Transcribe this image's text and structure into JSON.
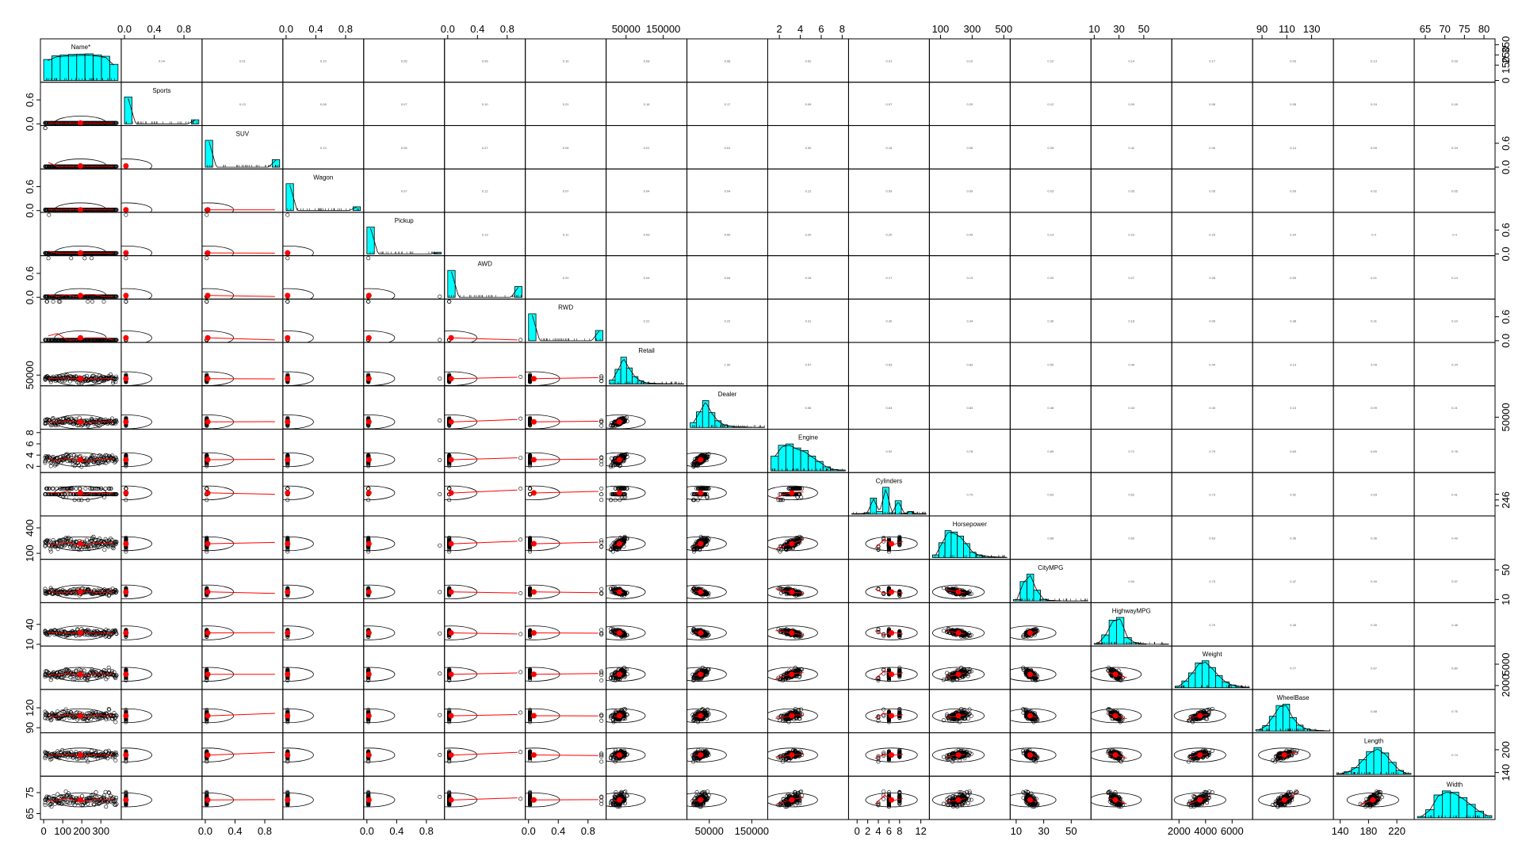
{
  "chart_data": {
    "type": "scatter-matrix",
    "title": "",
    "variables": [
      "Name*",
      "Sports",
      "SUV",
      "Wagon",
      "Pickup",
      "AWD",
      "RWD",
      "Retail",
      "Dealer",
      "Engine",
      "Cylinders",
      "Horsepower",
      "CityMPG",
      "HighwayMPG",
      "Weight",
      "WheelBase",
      "Length",
      "Width"
    ],
    "ranges": [
      [
        0,
        390
      ],
      [
        0,
        1
      ],
      [
        0,
        1
      ],
      [
        0,
        1
      ],
      [
        0,
        1
      ],
      [
        0,
        1
      ],
      [
        0,
        1
      ],
      [
        5000,
        205000
      ],
      [
        5000,
        180000
      ],
      [
        1.2,
        8.3
      ],
      [
        -1,
        13
      ],
      [
        50,
        520
      ],
      [
        8,
        62
      ],
      [
        10,
        70
      ],
      [
        1700,
        7300
      ],
      [
        85,
        145
      ],
      [
        135,
        240
      ],
      [
        63,
        82
      ]
    ],
    "ticks": {
      "top": [
        null,
        [
          {
            "v": 0.0,
            "l": "0.0"
          },
          {
            "v": 0.4,
            "l": "0.4"
          },
          {
            "v": 0.8,
            "l": "0.8"
          }
        ],
        null,
        [
          {
            "v": 0.0,
            "l": "0.0"
          },
          {
            "v": 0.4,
            "l": "0.4"
          },
          {
            "v": 0.8,
            "l": "0.8"
          }
        ],
        null,
        [
          {
            "v": 0.0,
            "l": "0.0"
          },
          {
            "v": 0.4,
            "l": "0.4"
          },
          {
            "v": 0.8,
            "l": "0.8"
          }
        ],
        null,
        [
          {
            "v": 50000,
            "l": "50000"
          },
          {
            "v": 150000,
            "l": "150000"
          }
        ],
        null,
        [
          {
            "v": 2,
            "l": "2"
          },
          {
            "v": 4,
            "l": "4"
          },
          {
            "v": 6,
            "l": "6"
          },
          {
            "v": 8,
            "l": "8"
          }
        ],
        null,
        [
          {
            "v": 100,
            "l": "100"
          },
          {
            "v": 300,
            "l": "300"
          },
          {
            "v": 500,
            "l": "500"
          }
        ],
        null,
        [
          {
            "v": 10,
            "l": "10"
          },
          {
            "v": 30,
            "l": "30"
          },
          {
            "v": 50,
            "l": "50"
          }
        ],
        null,
        [
          {
            "v": 90,
            "l": "90"
          },
          {
            "v": 110,
            "l": "110"
          },
          {
            "v": 130,
            "l": "130"
          }
        ],
        null,
        [
          {
            "v": 65,
            "l": "65"
          },
          {
            "v": 70,
            "l": "70"
          },
          {
            "v": 75,
            "l": "75"
          },
          {
            "v": 80,
            "l": "80"
          }
        ]
      ],
      "bottom": [
        [
          {
            "v": 0,
            "l": "0"
          },
          {
            "v": 100,
            "l": "100"
          },
          {
            "v": 200,
            "l": "200"
          },
          {
            "v": 300,
            "l": "300"
          }
        ],
        null,
        [
          {
            "v": 0.0,
            "l": "0.0"
          },
          {
            "v": 0.4,
            "l": "0.4"
          },
          {
            "v": 0.8,
            "l": "0.8"
          }
        ],
        null,
        [
          {
            "v": 0.0,
            "l": "0.0"
          },
          {
            "v": 0.4,
            "l": "0.4"
          },
          {
            "v": 0.8,
            "l": "0.8"
          }
        ],
        null,
        [
          {
            "v": 0.0,
            "l": "0.0"
          },
          {
            "v": 0.4,
            "l": "0.4"
          },
          {
            "v": 0.8,
            "l": "0.8"
          }
        ],
        null,
        [
          {
            "v": 50000,
            "l": "50000"
          },
          {
            "v": 150000,
            "l": "150000"
          }
        ],
        null,
        [
          {
            "v": 0,
            "l": "0"
          },
          {
            "v": 2,
            "l": "2"
          },
          {
            "v": 4,
            "l": "4"
          },
          {
            "v": 6,
            "l": "6"
          },
          {
            "v": 8,
            "l": "8"
          },
          {
            "v": 12,
            "l": "12"
          }
        ],
        null,
        [
          {
            "v": 10,
            "l": "10"
          },
          {
            "v": 30,
            "l": "30"
          },
          {
            "v": 50,
            "l": "50"
          }
        ],
        null,
        [
          {
            "v": 2000,
            "l": "2000"
          },
          {
            "v": 4000,
            "l": "4000"
          },
          {
            "v": 6000,
            "l": "6000"
          }
        ],
        null,
        [
          {
            "v": 140,
            "l": "140"
          },
          {
            "v": 180,
            "l": "180"
          },
          {
            "v": 220,
            "l": "220"
          }
        ],
        null
      ],
      "left": [
        null,
        [
          {
            "v": 0.0,
            "l": "0.0"
          },
          {
            "v": 0.6,
            "l": "0.6"
          }
        ],
        null,
        [
          {
            "v": 0.0,
            "l": "0.0"
          },
          {
            "v": 0.6,
            "l": "0.6"
          }
        ],
        null,
        [
          {
            "v": 0.0,
            "l": "0.0"
          },
          {
            "v": 0.6,
            "l": "0.6"
          }
        ],
        null,
        [
          {
            "v": 50000,
            "l": "50000"
          }
        ],
        null,
        [
          {
            "v": 2,
            "l": "2"
          },
          {
            "v": 4,
            "l": "4"
          },
          {
            "v": 6,
            "l": "6"
          },
          {
            "v": 8,
            "l": "8"
          }
        ],
        null,
        [
          {
            "v": 100,
            "l": "100"
          },
          {
            "v": 400,
            "l": "400"
          }
        ],
        null,
        [
          {
            "v": 10,
            "l": "10"
          },
          {
            "v": 40,
            "l": "40"
          }
        ],
        null,
        [
          {
            "v": 90,
            "l": "90"
          },
          {
            "v": 120,
            "l": "120"
          }
        ],
        null,
        [
          {
            "v": 65,
            "l": "65"
          },
          {
            "v": 75,
            "l": "75"
          }
        ]
      ],
      "right": [
        [
          {
            "v": 0,
            "l": "0"
          },
          {
            "v": 150,
            "l": "150"
          },
          {
            "v": 250,
            "l": "250"
          },
          {
            "v": 350,
            "l": "350"
          }
        ],
        null,
        [
          {
            "v": 0.0,
            "l": "0.0"
          },
          {
            "v": 0.6,
            "l": "0.6"
          }
        ],
        null,
        [
          {
            "v": 0.0,
            "l": "0.0"
          },
          {
            "v": 0.6,
            "l": "0.6"
          }
        ],
        null,
        [
          {
            "v": 0.0,
            "l": "0.0"
          },
          {
            "v": 0.6,
            "l": "0.6"
          }
        ],
        null,
        [
          {
            "v": 50000,
            "l": "50000"
          }
        ],
        null,
        [
          {
            "v": 2,
            "l": "2"
          },
          {
            "v": 4,
            "l": "4"
          },
          {
            "v": 6,
            "l": "6"
          }
        ],
        null,
        [
          {
            "v": 10,
            "l": "10"
          },
          {
            "v": 50,
            "l": "50"
          }
        ],
        null,
        [
          {
            "v": 2000,
            "l": "2000"
          },
          {
            "v": 5000,
            "l": "5000"
          }
        ],
        null,
        [
          {
            "v": 140,
            "l": "140"
          },
          {
            "v": 200,
            "l": "200"
          }
        ],
        null
      ]
    },
    "correlations": [
      [
        null,
        "0.04",
        "0.01",
        "0.10",
        "0.05",
        "0.06",
        "0.10",
        "0.08",
        "0.08",
        "0.02",
        "0.01",
        "0.10",
        "0.10",
        "0.14",
        "0.17",
        "0.03",
        "0.13",
        "0.03"
      ],
      [
        null,
        null,
        "0.13",
        "0.08",
        "0.07",
        "0.10",
        "0.21",
        "0.16",
        "0.17",
        "0.09",
        "0.07",
        "0.20",
        "0.12",
        "0.09",
        "0.06",
        "0.28",
        "0.24",
        "0.18"
      ],
      [
        null,
        null,
        null,
        "0.13",
        "0.05",
        "0.27",
        "0.04",
        "0.01",
        "0.01",
        "0.30",
        "0.16",
        "0.06",
        "0.28",
        "0.42",
        "0.40",
        "0.14",
        "0.09",
        "0.24"
      ],
      [
        null,
        null,
        null,
        null,
        "0.07",
        "0.12",
        "0.07",
        "0.04",
        "0.04",
        "0.12",
        "0.09",
        "0.09",
        "0.03",
        "0.05",
        "0.05",
        "0.09",
        "0.02",
        "0.05"
      ],
      [
        null,
        null,
        null,
        null,
        null,
        "0.19",
        "0.11",
        "0.09",
        "0.09",
        "0.20",
        "0.20",
        "0.09",
        "0.14",
        "0.23",
        "0.29",
        "0.24",
        "0.4",
        "0.4"
      ],
      [
        null,
        null,
        null,
        null,
        null,
        null,
        "0.20",
        "0.04",
        "0.04",
        "0.16",
        "0.17",
        "0.13",
        "0.20",
        "0.27",
        "0.26",
        "0.09",
        "0.01",
        "0.14"
      ],
      [
        null,
        null,
        null,
        null,
        null,
        null,
        null,
        "0.22",
        "0.22",
        "0.31",
        "0.30",
        "0.34",
        "0.30",
        "0.18",
        "0.09",
        "0.38",
        "0.31",
        "0.10"
      ],
      [
        null,
        null,
        null,
        null,
        null,
        null,
        null,
        null,
        "1.00",
        "0.57",
        "0.63",
        "0.83",
        "0.50",
        "0.46",
        "0.44",
        "0.13",
        "0.09",
        "0.24"
      ],
      [
        null,
        null,
        null,
        null,
        null,
        null,
        null,
        null,
        null,
        "0.56",
        "0.63",
        "0.83",
        "0.48",
        "0.43",
        "0.43",
        "0.13",
        "0.09",
        "0.21"
      ],
      [
        null,
        null,
        null,
        null,
        null,
        null,
        null,
        null,
        null,
        null,
        "0.92",
        "0.78",
        "0.69",
        "0.71",
        "0.79",
        "0.63",
        "0.69",
        "0.78"
      ],
      [
        null,
        null,
        null,
        null,
        null,
        null,
        null,
        null,
        null,
        null,
        null,
        "0.79",
        "0.63",
        "0.62",
        "0.73",
        "0.52",
        "0.63",
        "0.41"
      ],
      [
        null,
        null,
        null,
        null,
        null,
        null,
        null,
        null,
        null,
        null,
        null,
        null,
        "0.68",
        "0.63",
        "0.63",
        "0.36",
        "0.36",
        "0.49"
      ],
      [
        null,
        null,
        null,
        null,
        null,
        null,
        null,
        null,
        null,
        null,
        null,
        null,
        null,
        "0.94",
        "0.73",
        "0.47",
        "0.40",
        "0.57"
      ],
      [
        null,
        null,
        null,
        null,
        null,
        null,
        null,
        null,
        null,
        null,
        null,
        null,
        null,
        null,
        "0.79",
        "0.45",
        "0.30",
        "0.48"
      ],
      [
        null,
        null,
        null,
        null,
        null,
        null,
        null,
        null,
        null,
        null,
        null,
        null,
        null,
        null,
        null,
        "0.77",
        "0.67",
        "0.80"
      ],
      [
        null,
        null,
        null,
        null,
        null,
        null,
        null,
        null,
        null,
        null,
        null,
        null,
        null,
        null,
        null,
        null,
        "0.88",
        "0.75"
      ],
      [
        null,
        null,
        null,
        null,
        null,
        null,
        null,
        null,
        null,
        null,
        null,
        null,
        null,
        null,
        null,
        null,
        null,
        "0.74"
      ],
      [
        null,
        null,
        null,
        null,
        null,
        null,
        null,
        null,
        null,
        null,
        null,
        null,
        null,
        null,
        null,
        null,
        null,
        null
      ]
    ],
    "histograms": [
      [
        0.78,
        0.92,
        0.95,
        0.97,
        0.98,
        0.99,
        0.95,
        0.9,
        0.6
      ],
      [
        1.0,
        0,
        0,
        0,
        0,
        0,
        0,
        0,
        0,
        0.15
      ],
      [
        1.0,
        0,
        0,
        0,
        0,
        0,
        0,
        0,
        0,
        0.28
      ],
      [
        1.0,
        0,
        0,
        0,
        0,
        0,
        0,
        0,
        0,
        0.14
      ],
      [
        1.0,
        0,
        0,
        0,
        0,
        0,
        0,
        0,
        0,
        0.05
      ],
      [
        1.0,
        0,
        0,
        0,
        0,
        0,
        0,
        0,
        0,
        0.4
      ],
      [
        1.0,
        0,
        0,
        0,
        0,
        0,
        0,
        0,
        0,
        0.38
      ],
      [
        0.15,
        0.55,
        1.0,
        0.6,
        0.28,
        0.12,
        0.05,
        0.03,
        0.02,
        0.01,
        0.01,
        0,
        0.01
      ],
      [
        0.18,
        0.58,
        1.0,
        0.55,
        0.25,
        0.1,
        0.05,
        0.02,
        0.02,
        0.01,
        0,
        0.01
      ],
      [
        0.55,
        0.95,
        1.0,
        0.85,
        0.75,
        0.55,
        0.35,
        0.15,
        0.05,
        0.03
      ],
      [
        0.02,
        0.02,
        0.05,
        0.6,
        0.1,
        1.0,
        0.05,
        0.5,
        0.03,
        0.1,
        0.01,
        0.02
      ],
      [
        0.1,
        0.55,
        1.0,
        0.95,
        0.8,
        0.52,
        0.2,
        0.1,
        0.05,
        0.03,
        0.02,
        0.01
      ],
      [
        0.05,
        0.72,
        1.0,
        0.4,
        0.06,
        0.02,
        0.01,
        0,
        0,
        0,
        0.01
      ],
      [
        0.03,
        0.35,
        0.9,
        1.0,
        0.25,
        0.06,
        0.02,
        0,
        0,
        0.01
      ],
      [
        0.05,
        0.25,
        0.55,
        0.92,
        1.0,
        0.75,
        0.45,
        0.22,
        0.1,
        0.05,
        0.02
      ],
      [
        0.05,
        0.2,
        0.55,
        0.95,
        1.0,
        0.5,
        0.22,
        0.08,
        0.04,
        0.02,
        0.01
      ],
      [
        0.03,
        0.1,
        0.25,
        0.55,
        0.85,
        1.0,
        0.8,
        0.45,
        0.15,
        0.04
      ],
      [
        0.05,
        0.3,
        0.85,
        1.0,
        0.95,
        0.75,
        0.5,
        0.25,
        0.08
      ]
    ],
    "correlation_font_scale": 0.6,
    "smoother_color": "#ff0000",
    "histogram_fill": "#00ffff",
    "point_color": "#000000"
  }
}
